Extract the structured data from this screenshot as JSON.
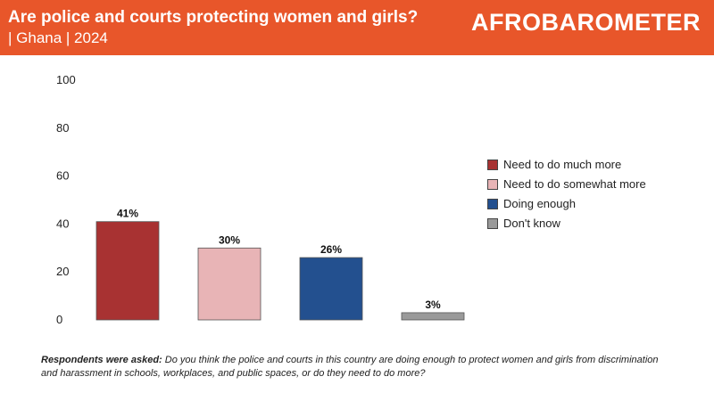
{
  "header": {
    "title": "Are police and courts protecting women and girls?",
    "subtitle": "| Ghana | 2024",
    "logo_text": "AFROBAROMETER",
    "color": "#e8562a"
  },
  "chart_data": {
    "type": "bar",
    "categories": [
      "Need to do much more",
      "Need to do somewhat more",
      "Doing enough",
      "Don't know"
    ],
    "values": [
      41,
      30,
      26,
      3
    ],
    "value_labels": [
      "41%",
      "30%",
      "26%",
      "3%"
    ],
    "colors": [
      "#a83232",
      "#e8b4b6",
      "#23508f",
      "#9a9a9a"
    ],
    "ylim": [
      0,
      100
    ],
    "yticks": [
      "0",
      "20",
      "40",
      "60",
      "80",
      "100"
    ],
    "grid": false,
    "legend_position": "right"
  },
  "legend": {
    "items": [
      {
        "label": "Need to do much more",
        "color": "#a83232"
      },
      {
        "label": "Need to do somewhat more",
        "color": "#e8b4b6"
      },
      {
        "label": "Doing enough",
        "color": "#23508f"
      },
      {
        "label": "Don't know",
        "color": "#9a9a9a"
      }
    ]
  },
  "footnote": {
    "lead": "Respondents were asked:",
    "text": " Do you think the police and courts in this country are doing enough to protect women and girls from discrimination and harassment in schools, workplaces, and public spaces, or do they need to do more?"
  }
}
